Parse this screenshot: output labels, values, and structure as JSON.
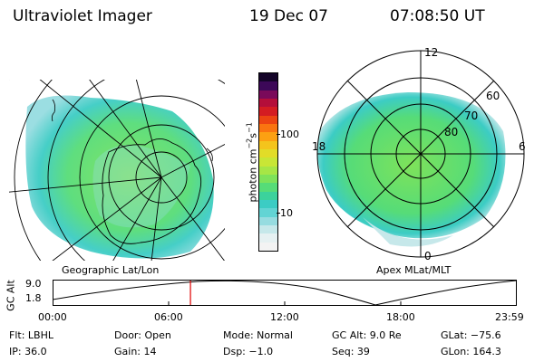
{
  "header": {
    "instrument": "Ultraviolet Imager",
    "date": "19 Dec 07",
    "time": "07:08:50 UT"
  },
  "left_map": {
    "label": "Geographic Lat/Lon"
  },
  "right_map": {
    "label": "Apex MLat/MLT",
    "mlt_labels": [
      "12",
      "18",
      "6",
      "0"
    ],
    "lat_labels": [
      "60",
      "70",
      "80"
    ]
  },
  "colorbar": {
    "unit_label": "photon cm",
    "unit_exp1": "−2",
    "unit_mid": "s",
    "unit_exp2": "−1",
    "tick_high": "100",
    "tick_low": "10",
    "colors": [
      "#f3f3f3",
      "#e6f1f2",
      "#c6e8ea",
      "#96dce0",
      "#62d4d4",
      "#3cccc4",
      "#3cd29c",
      "#56dc78",
      "#7ee25a",
      "#a6e646",
      "#c8e636",
      "#e2dc28",
      "#f4c41c",
      "#fca012",
      "#fa7410",
      "#ec4412",
      "#d41c22",
      "#b40e3a",
      "#7a0a5a",
      "#3c0858",
      "#140428"
    ]
  },
  "timeline": {
    "axis_label": "GC Alt",
    "y_top": "9.0",
    "y_bottom": "1.8",
    "ticks": [
      "00:00",
      "06:00",
      "12:00",
      "18:00",
      "23:59"
    ],
    "current_fraction": 0.297
  },
  "status": {
    "filter": "Flt: LBHL",
    "ip": "IP: 36.0",
    "door": "Door: Open",
    "gain": "Gain: 14",
    "mode": "Mode: Normal",
    "dsp": "Dsp:  −1.0",
    "gc_alt": "GC Alt: 9.0 Re",
    "seq": "Seq: 39",
    "glat": "GLat: −75.6",
    "glon": "GLon: 164.3"
  },
  "colors": {
    "accent_marker": "#e00000",
    "aurora_green": "#7ee25a",
    "aurora_cyan": "#3cccc4"
  }
}
